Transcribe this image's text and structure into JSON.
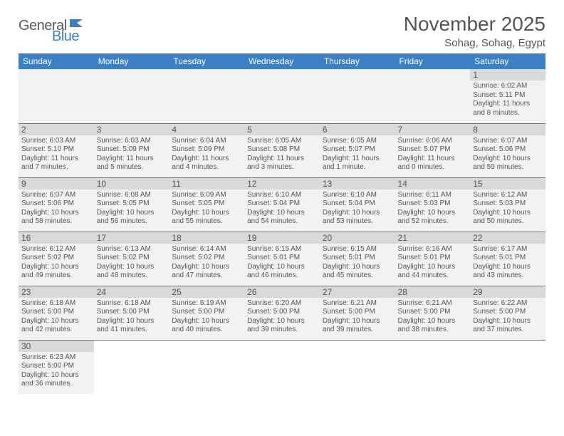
{
  "logo": {
    "text1": "General",
    "text2": "Blue"
  },
  "title": "November 2025",
  "location": "Sohag, Sohag, Egypt",
  "colors": {
    "header_bg": "#3b7fc4",
    "header_fg": "#ffffff",
    "daynum_bg": "#d9d9d9",
    "cell_bg": "#f2f2f2",
    "text": "#555555",
    "rule": "#3b7fc4"
  },
  "dayHeaders": [
    "Sunday",
    "Monday",
    "Tuesday",
    "Wednesday",
    "Thursday",
    "Friday",
    "Saturday"
  ],
  "weeks": [
    [
      null,
      null,
      null,
      null,
      null,
      null,
      {
        "n": "1",
        "sr": "Sunrise: 6:02 AM",
        "ss": "Sunset: 5:11 PM",
        "dl": "Daylight: 11 hours and 8 minutes."
      }
    ],
    [
      {
        "n": "2",
        "sr": "Sunrise: 6:03 AM",
        "ss": "Sunset: 5:10 PM",
        "dl": "Daylight: 11 hours and 7 minutes."
      },
      {
        "n": "3",
        "sr": "Sunrise: 6:03 AM",
        "ss": "Sunset: 5:09 PM",
        "dl": "Daylight: 11 hours and 5 minutes."
      },
      {
        "n": "4",
        "sr": "Sunrise: 6:04 AM",
        "ss": "Sunset: 5:09 PM",
        "dl": "Daylight: 11 hours and 4 minutes."
      },
      {
        "n": "5",
        "sr": "Sunrise: 6:05 AM",
        "ss": "Sunset: 5:08 PM",
        "dl": "Daylight: 11 hours and 3 minutes."
      },
      {
        "n": "6",
        "sr": "Sunrise: 6:05 AM",
        "ss": "Sunset: 5:07 PM",
        "dl": "Daylight: 11 hours and 1 minute."
      },
      {
        "n": "7",
        "sr": "Sunrise: 6:06 AM",
        "ss": "Sunset: 5:07 PM",
        "dl": "Daylight: 11 hours and 0 minutes."
      },
      {
        "n": "8",
        "sr": "Sunrise: 6:07 AM",
        "ss": "Sunset: 5:06 PM",
        "dl": "Daylight: 10 hours and 59 minutes."
      }
    ],
    [
      {
        "n": "9",
        "sr": "Sunrise: 6:07 AM",
        "ss": "Sunset: 5:06 PM",
        "dl": "Daylight: 10 hours and 58 minutes."
      },
      {
        "n": "10",
        "sr": "Sunrise: 6:08 AM",
        "ss": "Sunset: 5:05 PM",
        "dl": "Daylight: 10 hours and 56 minutes."
      },
      {
        "n": "11",
        "sr": "Sunrise: 6:09 AM",
        "ss": "Sunset: 5:05 PM",
        "dl": "Daylight: 10 hours and 55 minutes."
      },
      {
        "n": "12",
        "sr": "Sunrise: 6:10 AM",
        "ss": "Sunset: 5:04 PM",
        "dl": "Daylight: 10 hours and 54 minutes."
      },
      {
        "n": "13",
        "sr": "Sunrise: 6:10 AM",
        "ss": "Sunset: 5:04 PM",
        "dl": "Daylight: 10 hours and 53 minutes."
      },
      {
        "n": "14",
        "sr": "Sunrise: 6:11 AM",
        "ss": "Sunset: 5:03 PM",
        "dl": "Daylight: 10 hours and 52 minutes."
      },
      {
        "n": "15",
        "sr": "Sunrise: 6:12 AM",
        "ss": "Sunset: 5:03 PM",
        "dl": "Daylight: 10 hours and 50 minutes."
      }
    ],
    [
      {
        "n": "16",
        "sr": "Sunrise: 6:12 AM",
        "ss": "Sunset: 5:02 PM",
        "dl": "Daylight: 10 hours and 49 minutes."
      },
      {
        "n": "17",
        "sr": "Sunrise: 6:13 AM",
        "ss": "Sunset: 5:02 PM",
        "dl": "Daylight: 10 hours and 48 minutes."
      },
      {
        "n": "18",
        "sr": "Sunrise: 6:14 AM",
        "ss": "Sunset: 5:02 PM",
        "dl": "Daylight: 10 hours and 47 minutes."
      },
      {
        "n": "19",
        "sr": "Sunrise: 6:15 AM",
        "ss": "Sunset: 5:01 PM",
        "dl": "Daylight: 10 hours and 46 minutes."
      },
      {
        "n": "20",
        "sr": "Sunrise: 6:15 AM",
        "ss": "Sunset: 5:01 PM",
        "dl": "Daylight: 10 hours and 45 minutes."
      },
      {
        "n": "21",
        "sr": "Sunrise: 6:16 AM",
        "ss": "Sunset: 5:01 PM",
        "dl": "Daylight: 10 hours and 44 minutes."
      },
      {
        "n": "22",
        "sr": "Sunrise: 6:17 AM",
        "ss": "Sunset: 5:01 PM",
        "dl": "Daylight: 10 hours and 43 minutes."
      }
    ],
    [
      {
        "n": "23",
        "sr": "Sunrise: 6:18 AM",
        "ss": "Sunset: 5:00 PM",
        "dl": "Daylight: 10 hours and 42 minutes."
      },
      {
        "n": "24",
        "sr": "Sunrise: 6:18 AM",
        "ss": "Sunset: 5:00 PM",
        "dl": "Daylight: 10 hours and 41 minutes."
      },
      {
        "n": "25",
        "sr": "Sunrise: 6:19 AM",
        "ss": "Sunset: 5:00 PM",
        "dl": "Daylight: 10 hours and 40 minutes."
      },
      {
        "n": "26",
        "sr": "Sunrise: 6:20 AM",
        "ss": "Sunset: 5:00 PM",
        "dl": "Daylight: 10 hours and 39 minutes."
      },
      {
        "n": "27",
        "sr": "Sunrise: 6:21 AM",
        "ss": "Sunset: 5:00 PM",
        "dl": "Daylight: 10 hours and 39 minutes."
      },
      {
        "n": "28",
        "sr": "Sunrise: 6:21 AM",
        "ss": "Sunset: 5:00 PM",
        "dl": "Daylight: 10 hours and 38 minutes."
      },
      {
        "n": "29",
        "sr": "Sunrise: 6:22 AM",
        "ss": "Sunset: 5:00 PM",
        "dl": "Daylight: 10 hours and 37 minutes."
      }
    ],
    [
      {
        "n": "30",
        "sr": "Sunrise: 6:23 AM",
        "ss": "Sunset: 5:00 PM",
        "dl": "Daylight: 10 hours and 36 minutes."
      },
      null,
      null,
      null,
      null,
      null,
      null
    ]
  ]
}
